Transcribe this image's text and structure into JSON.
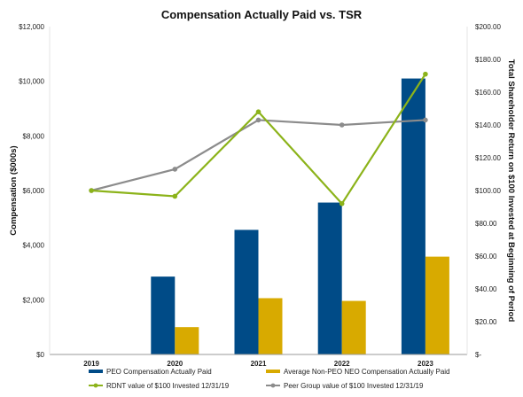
{
  "chart_data": {
    "type": "bar",
    "title": "Compensation Actually Paid vs. TSR",
    "ylabel": "Compensation ($000s)",
    "y2label": "Total Shareholder Return on $100 Invested at Beginning of Period",
    "categories": [
      "2019",
      "2020",
      "2021",
      "2022",
      "2023"
    ],
    "ylim": [
      0,
      12000
    ],
    "y2lim": [
      0,
      200
    ],
    "y_ticks": [
      "$0",
      "$2,000",
      "$4,000",
      "$6,000",
      "$8,000",
      "$10,000",
      "$12,000"
    ],
    "y2_ticks": [
      "$-",
      "$20.00",
      "$40.00",
      "$60.00",
      "$80.00",
      "$100.00",
      "$120.00",
      "$140.00",
      "$160.00",
      "$180.00",
      "$200.00"
    ],
    "bar_series": [
      {
        "name": "PEO Compensation Actually Paid",
        "color": "#004b87",
        "values": [
          null,
          2850,
          4560,
          5560,
          10100
        ]
      },
      {
        "name": "Average Non-PEO NEO Compensation Actually Paid",
        "color": "#d8aa00",
        "values": [
          null,
          1000,
          2060,
          1960,
          3580
        ]
      }
    ],
    "line_series": [
      {
        "name": "RDNT value of $100 Invested 12/31/19",
        "color": "#8cb31a",
        "values": [
          100,
          96.5,
          148,
          92,
          171
        ]
      },
      {
        "name": "Peer Group value of $100 Invested 12/31/19",
        "color": "#8c8c8c",
        "values": [
          100,
          113,
          143,
          140,
          143
        ]
      }
    ],
    "grid": false,
    "legend_position": "bottom"
  }
}
